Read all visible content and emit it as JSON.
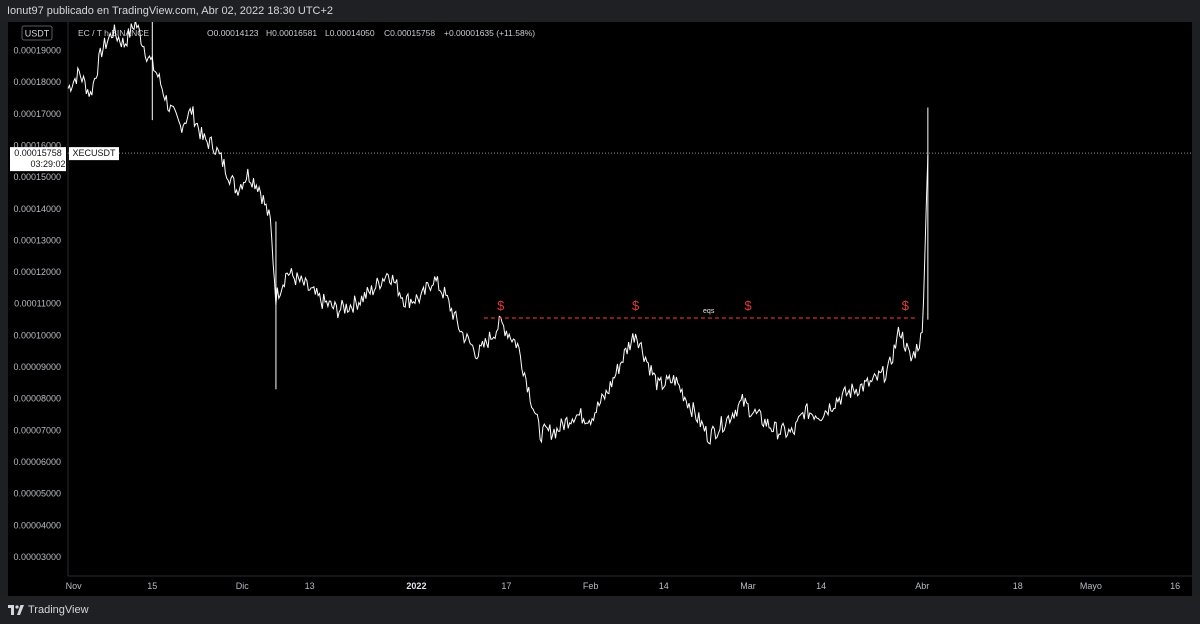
{
  "header": {
    "publish_line": "Ionut97 publicado en TradingView.com, Abr 02, 2022 18:30 UTC+2"
  },
  "legend": {
    "symbol_text": "EC / T        h  BINANCE",
    "o": "O0.00014123",
    "h": "H0.00016581",
    "l": "L0.00014050",
    "c": "C0.00015758",
    "change": "+0.00001635 (+11.58%)"
  },
  "currency_badge": "USDT",
  "price_label": {
    "price": "0.00015758",
    "countdown": "03:29:02",
    "symbol": "XECUSDT"
  },
  "annotation": {
    "label": "eqs",
    "marker": "$",
    "marker_color": "#e03a3a",
    "line_color": "#d22f2f"
  },
  "footer": {
    "brand": "TradingView"
  },
  "colors": {
    "background": "#000000",
    "frame": "#1e1f22",
    "series": "#ffffff"
  },
  "chart_data": {
    "type": "line",
    "title": "",
    "xlabel": "",
    "ylabel": "",
    "x_tick_labels": [
      "Nov",
      "15",
      "Dic",
      "13",
      "2022",
      "17",
      "Feb",
      "14",
      "Mar",
      "14",
      "Abr",
      "18",
      "Mayo",
      "16"
    ],
    "y_tick_labels": [
      "0.00019000",
      "0.00018000",
      "0.00017000",
      "0.00016000",
      "0.00015000",
      "0.00014000",
      "0.00013000",
      "0.00012000",
      "0.00011000",
      "0.00010000",
      "0.00009000",
      "0.00008000",
      "0.00007000",
      "0.00006000",
      "0.00005000",
      "0.00004000",
      "0.00003000"
    ],
    "ylim": [
      2.4e-05,
      0.000199
    ],
    "xlim": [
      "2021-10-31",
      "2022-05-19"
    ],
    "grid": false,
    "series": [
      {
        "values": [
          [
            "2021-10-31",
            0.000178
          ],
          [
            "2021-11-02",
            0.000183
          ],
          [
            "2021-11-04",
            0.000176
          ],
          [
            "2021-11-06",
            0.00019
          ],
          [
            "2021-11-08",
            0.000196
          ],
          [
            "2021-11-10",
            0.000192
          ],
          [
            "2021-11-12",
            0.000199
          ],
          [
            "2021-11-14",
            0.000189
          ],
          [
            "2021-11-16",
            0.000182
          ],
          [
            "2021-11-18",
            0.000172
          ],
          [
            "2021-11-20",
            0.000166
          ],
          [
            "2021-11-22",
            0.000171
          ],
          [
            "2021-11-24",
            0.000162
          ],
          [
            "2021-11-26",
            0.00016
          ],
          [
            "2021-11-28",
            0.000153
          ],
          [
            "2021-11-30",
            0.000146
          ],
          [
            "2021-12-02",
            0.000151
          ],
          [
            "2021-12-04",
            0.000147
          ],
          [
            "2021-12-06",
            0.000136
          ],
          [
            "2021-12-07",
            0.000112
          ],
          [
            "2021-12-09",
            0.00012
          ],
          [
            "2021-12-12",
            0.000116
          ],
          [
            "2021-12-15",
            0.000111
          ],
          [
            "2021-12-18",
            0.000108
          ],
          [
            "2021-12-21",
            0.00011
          ],
          [
            "2021-12-24",
            0.000114
          ],
          [
            "2021-12-27",
            0.00012
          ],
          [
            "2021-12-30",
            0.000111
          ],
          [
            "2022-01-02",
            0.000112
          ],
          [
            "2022-01-04",
            0.000118
          ],
          [
            "2022-01-06",
            0.000113
          ],
          [
            "2022-01-09",
            0.000101
          ],
          [
            "2022-01-12",
            9.4e-05
          ],
          [
            "2022-01-16",
            0.000104
          ],
          [
            "2022-01-19",
            9.7e-05
          ],
          [
            "2022-01-21",
            8.3e-05
          ],
          [
            "2022-01-23",
            6.9e-05
          ],
          [
            "2022-01-26",
            7e-05
          ],
          [
            "2022-01-29",
            7.5e-05
          ],
          [
            "2022-02-01",
            7.4e-05
          ],
          [
            "2022-02-04",
            8.2e-05
          ],
          [
            "2022-02-07",
            9.4e-05
          ],
          [
            "2022-02-09",
            0.000101
          ],
          [
            "2022-02-11",
            9.2e-05
          ],
          [
            "2022-02-13",
            8.4e-05
          ],
          [
            "2022-02-16",
            8.6e-05
          ],
          [
            "2022-02-19",
            7.7e-05
          ],
          [
            "2022-02-22",
            6.8e-05
          ],
          [
            "2022-02-25",
            7.3e-05
          ],
          [
            "2022-02-28",
            7.9e-05
          ],
          [
            "2022-03-03",
            7.4e-05
          ],
          [
            "2022-03-06",
            7e-05
          ],
          [
            "2022-03-09",
            6.9e-05
          ],
          [
            "2022-03-11",
            7.6e-05
          ],
          [
            "2022-03-14",
            7.5e-05
          ],
          [
            "2022-03-17",
            8e-05
          ],
          [
            "2022-03-20",
            8.3e-05
          ],
          [
            "2022-03-23",
            8.5e-05
          ],
          [
            "2022-03-26",
            8.9e-05
          ],
          [
            "2022-03-28",
            0.000102
          ],
          [
            "2022-03-30",
            9.2e-05
          ],
          [
            "2022-04-01",
            0.0001
          ],
          [
            "2022-04-02",
            0.000157
          ]
        ]
      }
    ],
    "annotations": [
      {
        "type": "horizontal-dashed-line",
        "y": 0.0001055,
        "x_from": "2022-01-13",
        "x_to": "2022-03-31"
      },
      {
        "type": "marker",
        "text": "$",
        "x": "2022-01-16",
        "y": 0.0001055
      },
      {
        "type": "marker",
        "text": "$",
        "x": "2022-02-09",
        "y": 0.0001055
      },
      {
        "type": "marker",
        "text": "$",
        "x": "2022-03-01",
        "y": 0.0001055
      },
      {
        "type": "marker",
        "text": "$",
        "x": "2022-03-29",
        "y": 0.0001055
      },
      {
        "type": "text",
        "text": "eqs",
        "x": "2022-02-22",
        "y": 0.0001055
      }
    ],
    "last_price": 0.00015758
  }
}
